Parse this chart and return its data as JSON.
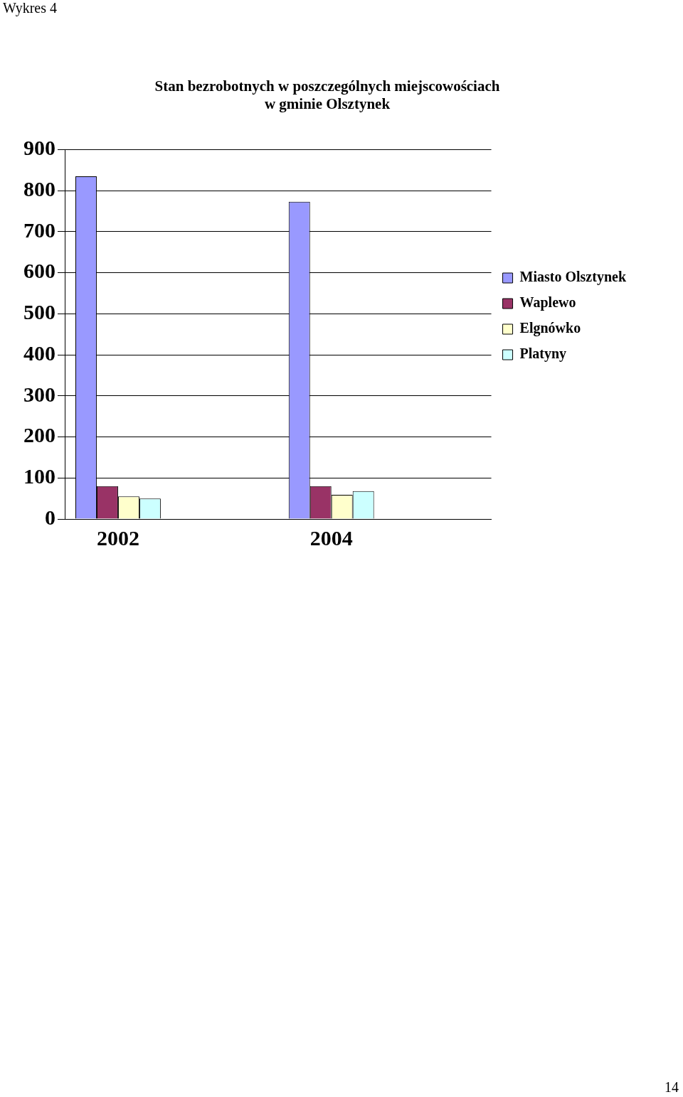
{
  "chart_data": {
    "type": "bar",
    "title": [
      "Stan bezrobotnych w poszczególnych miejscowościach",
      "w gminie Olsztynek"
    ],
    "categories": [
      "2002",
      null,
      "2004",
      null
    ],
    "series": [
      {
        "name": "Miasto Olsztynek",
        "color": "#9999ff",
        "values": [
          835,
          null,
          773,
          null
        ]
      },
      {
        "name": "Waplewo",
        "color": "#993366",
        "values": [
          80,
          null,
          80,
          null
        ]
      },
      {
        "name": "Elgnówko",
        "color": "#ffffcc",
        "values": [
          55,
          null,
          59,
          null
        ]
      },
      {
        "name": "Platyny",
        "color": "#ccffff",
        "values": [
          50,
          null,
          68,
          null
        ]
      }
    ],
    "ylim": [
      0,
      900
    ],
    "yticks": [
      0,
      100,
      200,
      300,
      400,
      500,
      600,
      700,
      800,
      900
    ],
    "grid": "y",
    "legend": "right",
    "annotations": [
      "Wykres 4",
      "14"
    ]
  }
}
